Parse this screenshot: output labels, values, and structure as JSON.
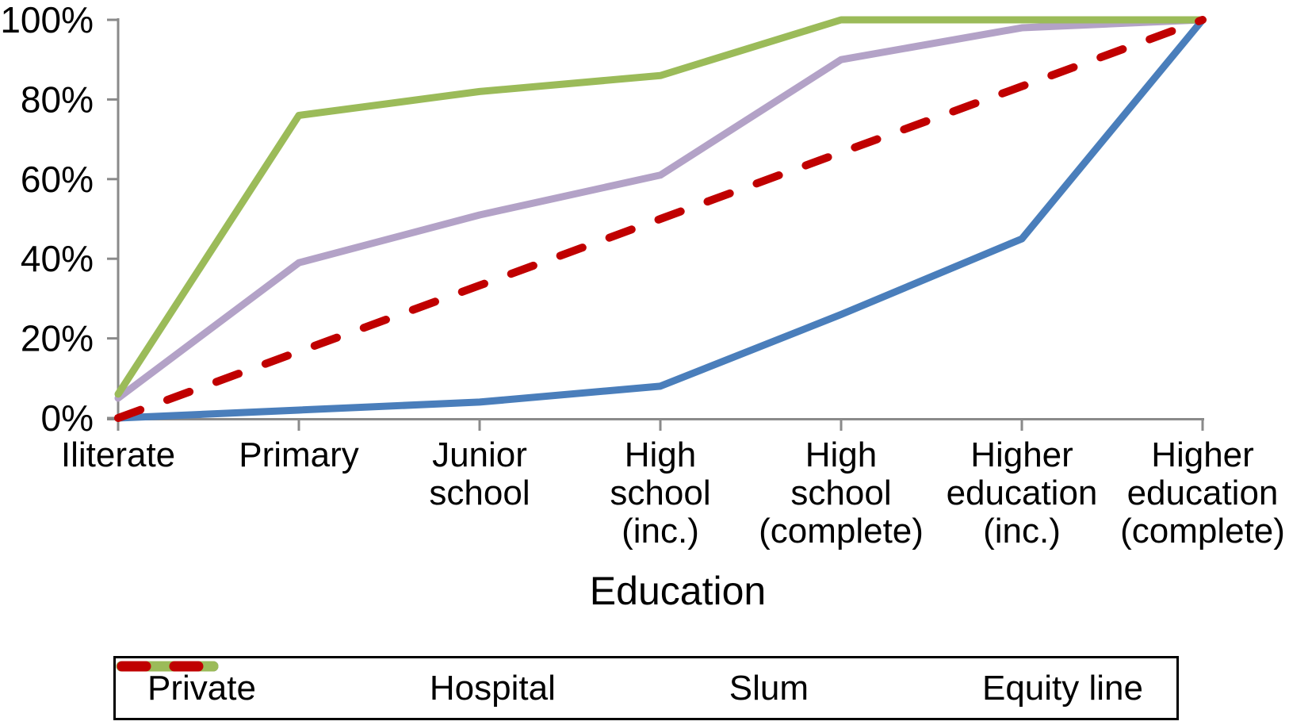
{
  "chart_data": {
    "type": "line",
    "title": "",
    "xlabel": "Education",
    "ylabel": "",
    "ylim": [
      0,
      100
    ],
    "grid": false,
    "legend_position": "bottom-boxed",
    "axis_color": "#8A8A8A",
    "text_color": "#000000",
    "y_ticks": [
      {
        "value": 0,
        "label": "0%"
      },
      {
        "value": 20,
        "label": "20%"
      },
      {
        "value": 40,
        "label": "40%"
      },
      {
        "value": 60,
        "label": "60%"
      },
      {
        "value": 80,
        "label": "80%"
      },
      {
        "value": 100,
        "label": "100%"
      }
    ],
    "categories": [
      "Iliterate",
      "Primary",
      "Junior\nschool",
      "High\nschool\n(inc.)",
      "High\nschool\n(complete)",
      "Higher\neducation\n(inc.)",
      "Higher\neducation\n(complete)"
    ],
    "series": [
      {
        "name": "Private",
        "color": "#4A7EBB",
        "dashed": false,
        "values": [
          0,
          2,
          4,
          8,
          26,
          45,
          100
        ]
      },
      {
        "name": "Hospital",
        "color": "#B3A2C7",
        "dashed": false,
        "values": [
          5,
          39,
          51,
          61,
          90,
          98,
          100
        ]
      },
      {
        "name": "Slum",
        "color": "#9BBB59",
        "dashed": false,
        "values": [
          6,
          76,
          82,
          86,
          100,
          100,
          100
        ]
      },
      {
        "name": "Equity line",
        "color": "#C00000",
        "dashed": true,
        "values": [
          0,
          16.7,
          33.3,
          50,
          66.7,
          83.3,
          100
        ]
      }
    ],
    "z_order": [
      1,
      2,
      0,
      3
    ]
  }
}
